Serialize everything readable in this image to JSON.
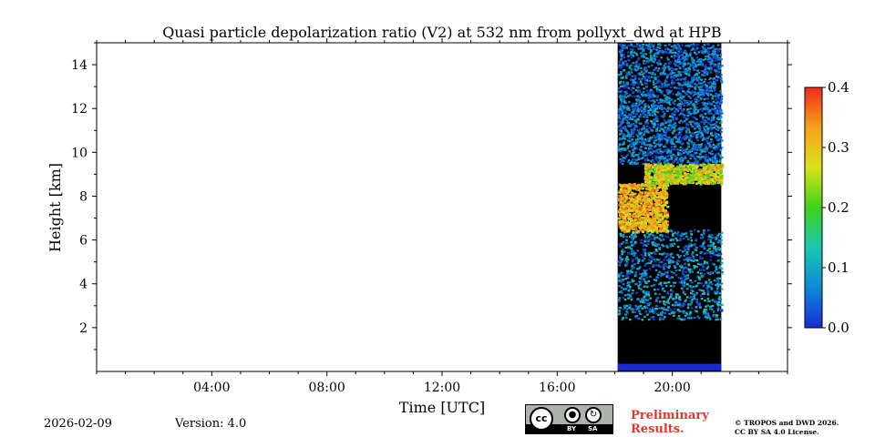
{
  "chart_data": {
    "type": "heatmap",
    "title": "Quasi particle depolarization ratio (V2) at 532 nm from pollyxt_dwd at HPB",
    "xlabel": "Time [UTC]",
    "ylabel": "Height [km]",
    "xlim": [
      0,
      24
    ],
    "ylim": [
      0,
      15
    ],
    "x_ticks": [
      {
        "value": 4,
        "label": "04:00"
      },
      {
        "value": 8,
        "label": "08:00"
      },
      {
        "value": 12,
        "label": "12:00"
      },
      {
        "value": 16,
        "label": "16:00"
      },
      {
        "value": 20,
        "label": "20:00"
      }
    ],
    "y_ticks": [
      {
        "value": 2,
        "label": "2"
      },
      {
        "value": 4,
        "label": "4"
      },
      {
        "value": 6,
        "label": "6"
      },
      {
        "value": 8,
        "label": "8"
      },
      {
        "value": 10,
        "label": "10"
      },
      {
        "value": 12,
        "label": "12"
      },
      {
        "value": 14,
        "label": "14"
      }
    ],
    "colorbar": {
      "range": [
        0.0,
        0.4
      ],
      "ticks": [
        {
          "value": 0.0,
          "label": "0.0"
        },
        {
          "value": 0.1,
          "label": "0.1"
        },
        {
          "value": 0.2,
          "label": "0.2"
        },
        {
          "value": 0.3,
          "label": "0.3"
        },
        {
          "value": 0.4,
          "label": "0.4"
        }
      ],
      "colormap": [
        "#1a2bd6",
        "#0c8ad8",
        "#19c8b0",
        "#3fd21a",
        "#d9e21a",
        "#f7a21a",
        "#ee2a1a"
      ]
    },
    "data_time_range": [
      18.1,
      21.7
    ],
    "features": [
      {
        "name": "near-surface",
        "height": [
          0.0,
          2.4
        ],
        "value_range": [
          0.0,
          0.0
        ],
        "color": "#000000"
      },
      {
        "name": "surface-blue-layer",
        "height": [
          0.05,
          0.35
        ],
        "value_range": [
          0.0,
          0.02
        ]
      },
      {
        "name": "speckle-low",
        "height": [
          2.4,
          6.5
        ],
        "value_range": [
          0.0,
          0.15
        ]
      },
      {
        "name": "aerosol-layer-high",
        "time": [
          18.1,
          19.8
        ],
        "height": [
          6.4,
          8.6
        ],
        "value_range": [
          0.24,
          0.38
        ]
      },
      {
        "name": "cirrus-band",
        "time": [
          19.0,
          21.7
        ],
        "height": [
          8.6,
          9.5
        ],
        "value_range": [
          0.18,
          0.35
        ]
      },
      {
        "name": "speckle-upper",
        "height": [
          9.5,
          15.0
        ],
        "value_range": [
          0.0,
          0.12
        ]
      }
    ]
  },
  "footer": {
    "date": "2026-02-09",
    "version": "Version: 4.0",
    "preliminary_line1": "Preliminary",
    "preliminary_line2": "Results.",
    "copyright_line1": "© TROPOS and DWD 2026.",
    "copyright_line2": "CC BY SA 4.0 License.",
    "cc_logo": {
      "main": "cc",
      "by_label": "BY",
      "sa_label": "SA"
    }
  },
  "colors": {
    "background": "#ffffff",
    "no_signal": "#000000"
  }
}
